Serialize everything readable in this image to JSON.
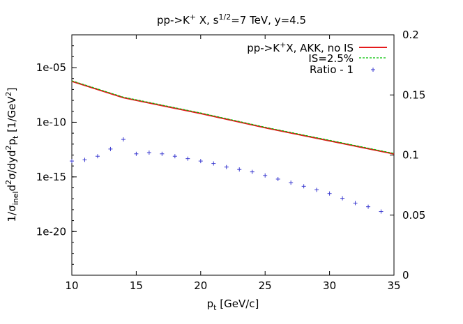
{
  "chart_data": {
    "type": "line",
    "title": {
      "base": "pp->K",
      "sup1": "+",
      "mid": " X, s",
      "sup2": "1/2",
      "tail": "=7 TeV, y=4.5"
    },
    "xlabel": {
      "base": "p",
      "sub": "t",
      "tail": " [GeV/c]"
    },
    "ylabel": {
      "p1": "1/σ",
      "s1": "inel",
      "p2": "d",
      "u1": "2",
      "p3": "σ/dyd",
      "u2": "2",
      "p4": "p",
      "s2": "t",
      "p5": " [1/GeV",
      "u3": "2",
      "p6": "]"
    },
    "xlim": [
      10,
      35
    ],
    "ylim_log10": [
      -24,
      -2
    ],
    "y2lim": [
      0,
      0.2
    ],
    "x_ticks": [
      10,
      15,
      20,
      25,
      30,
      35
    ],
    "y_ticks": [
      {
        "exp": -5,
        "label": "1e-05"
      },
      {
        "exp": -10,
        "label": "1e-10"
      },
      {
        "exp": -15,
        "label": "1e-15"
      },
      {
        "exp": -20,
        "label": "1e-20"
      }
    ],
    "y2_ticks": [
      {
        "v": 0,
        "label": "0"
      },
      {
        "v": 0.05,
        "label": "0.05"
      },
      {
        "v": 0.1,
        "label": "0.1"
      },
      {
        "v": 0.15,
        "label": "0.15"
      },
      {
        "v": 0.2,
        "label": "0.2"
      }
    ],
    "legend_position": "top-right",
    "series": [
      {
        "name": {
          "base": "pp->K",
          "sup": "+",
          "tail": "X, AKK, no IS"
        },
        "style": "line",
        "color": "#e41a1c",
        "axis": "left-log",
        "x": [
          10,
          14,
          20,
          25,
          30,
          35
        ],
        "y_log10": [
          -6.25,
          -7.75,
          -9.2,
          -10.5,
          -11.7,
          -12.9
        ]
      },
      {
        "name": {
          "base": "IS=2.5%",
          "sup": "",
          "tail": ""
        },
        "style": "dashed",
        "color": "#00c000",
        "axis": "left-log",
        "x": [
          10,
          14,
          20,
          25,
          30,
          35
        ],
        "y_log10": [
          -6.2,
          -7.7,
          -9.15,
          -10.45,
          -11.65,
          -12.85
        ]
      },
      {
        "name": {
          "base": "Ratio - 1",
          "sup": "",
          "tail": ""
        },
        "style": "points",
        "color": "#3a3ad0",
        "axis": "right",
        "x": [
          10,
          11,
          12,
          13,
          14,
          15,
          16,
          17,
          18,
          19,
          20,
          21,
          22,
          23,
          24,
          25,
          26,
          27,
          28,
          29,
          30,
          31,
          32,
          33,
          34
        ],
        "y": [
          0.095,
          0.096,
          0.099,
          0.105,
          0.113,
          0.101,
          0.102,
          0.101,
          0.099,
          0.097,
          0.095,
          0.093,
          0.09,
          0.088,
          0.086,
          0.083,
          0.08,
          0.077,
          0.074,
          0.071,
          0.068,
          0.064,
          0.06,
          0.057,
          0.053
        ]
      }
    ]
  }
}
